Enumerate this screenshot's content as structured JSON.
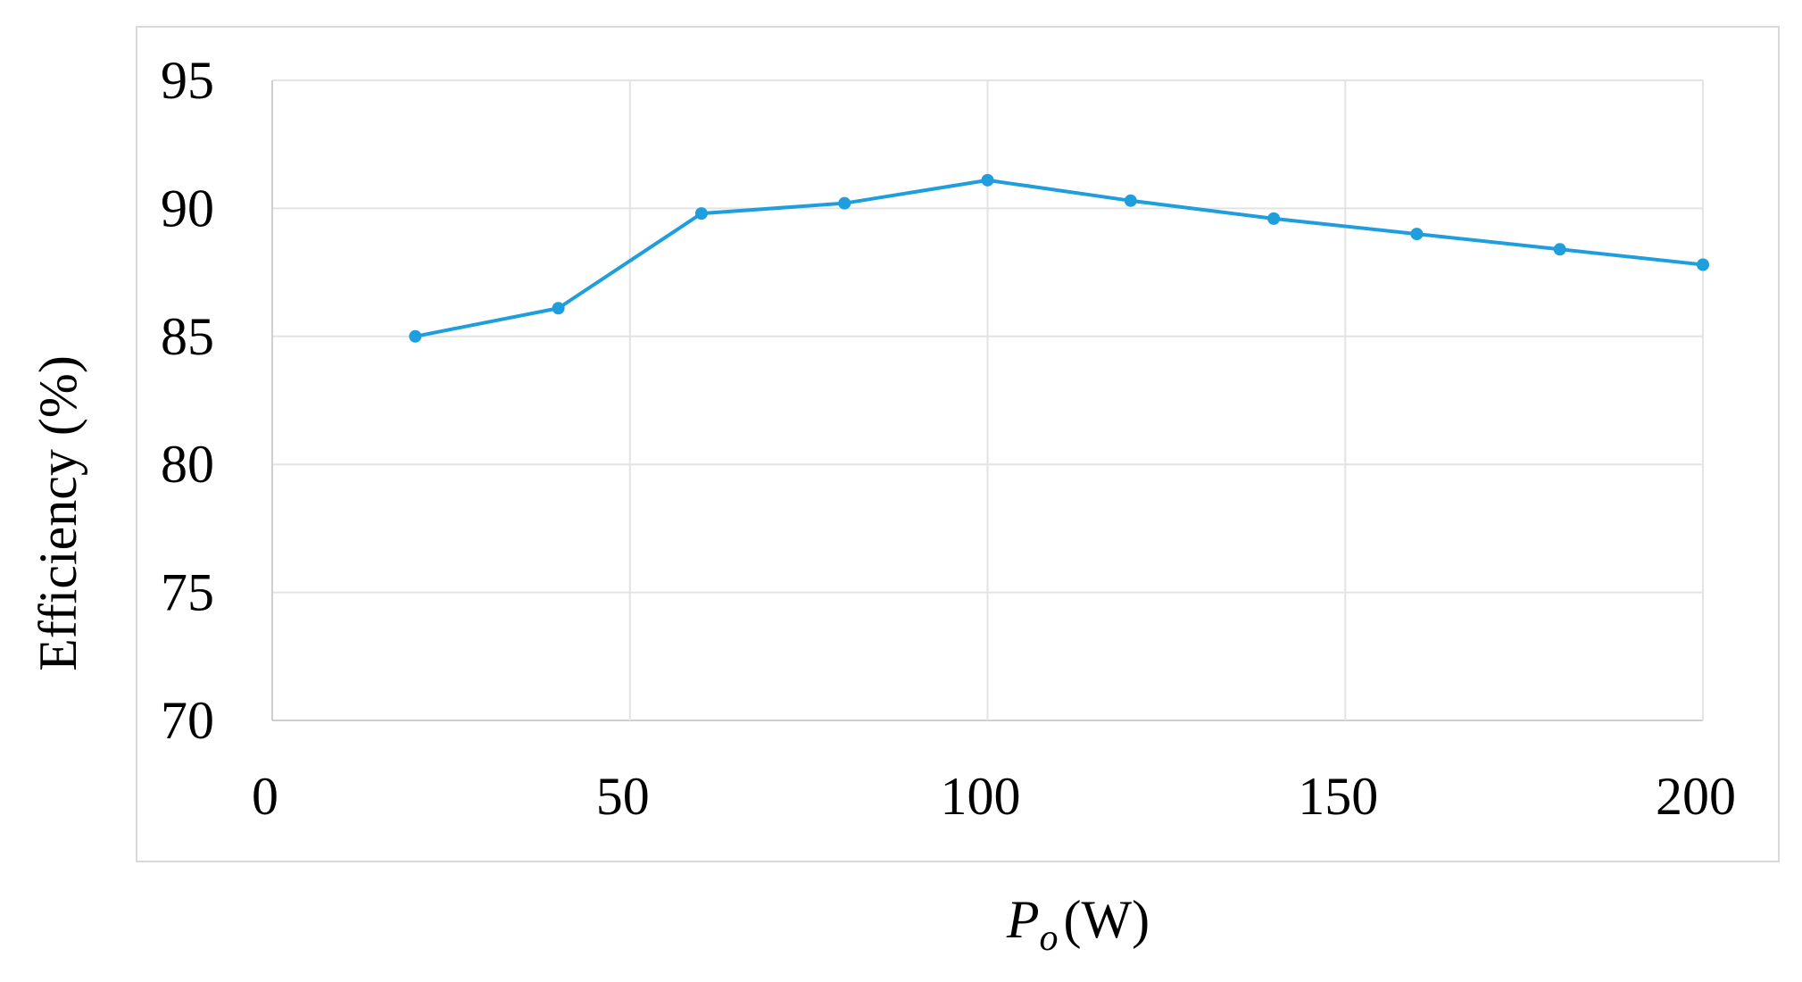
{
  "chart_data": {
    "type": "line",
    "title": "",
    "xlabel": {
      "symbol": "P",
      "subscript": "o",
      "unit": "(W)"
    },
    "ylabel": "Efficiency (%)",
    "xlim": [
      0,
      200
    ],
    "ylim": [
      70,
      95
    ],
    "xticks": [
      0,
      50,
      100,
      150,
      200
    ],
    "yticks": [
      70,
      75,
      80,
      85,
      90,
      95
    ],
    "grid": true,
    "series": [
      {
        "color": "#1f9ede",
        "x": [
          20,
          40,
          60,
          80,
          100,
          120,
          140,
          160,
          180,
          200
        ],
        "y": [
          85.0,
          86.1,
          89.8,
          90.2,
          91.1,
          90.3,
          89.6,
          89.0,
          88.4,
          87.8
        ]
      }
    ]
  }
}
